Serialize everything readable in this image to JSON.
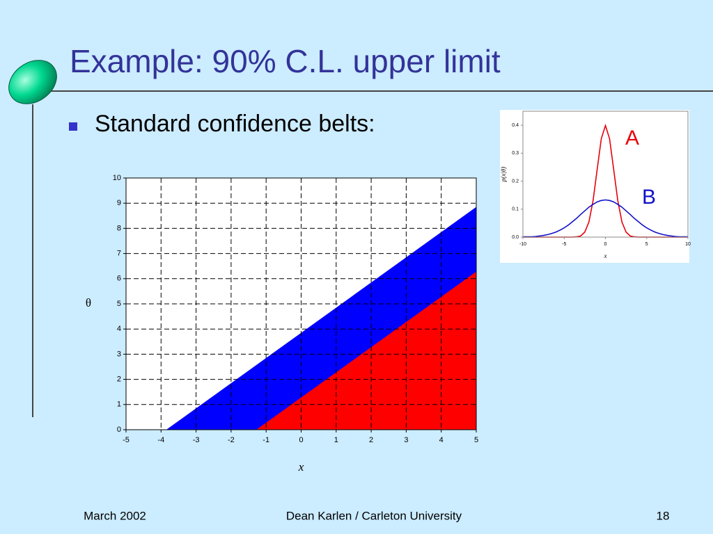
{
  "title": "Example: 90% C.L. upper limit",
  "bullet": "Standard confidence belts:",
  "footer": {
    "date": "March 2002",
    "author": "Dean Karlen / Carleton University",
    "page": "18"
  },
  "chart_data": [
    {
      "type": "area",
      "xlabel": "x",
      "ylabel": "θ",
      "x": [
        -3.85,
        -1.28,
        5
      ],
      "series": [
        {
          "color": "#0000ff",
          "values": [
            0,
            2.57,
            8.85
          ]
        },
        {
          "color": "#ff0000",
          "values": [
            null,
            0,
            6.28
          ]
        }
      ],
      "xlim": [
        -5,
        5
      ],
      "xticks": [
        -5,
        -4,
        -3,
        -2,
        -1,
        0,
        1,
        2,
        3,
        4,
        5
      ],
      "ylim": [
        0,
        10
      ],
      "yticks": [
        0,
        1,
        2,
        3,
        4,
        5,
        6,
        7,
        8,
        9,
        10
      ],
      "grid": true
    },
    {
      "type": "line",
      "xlabel": "x",
      "ylabel": "p(x|θ)",
      "x": [
        -10,
        -9.5,
        -9,
        -8.5,
        -8,
        -7.5,
        -7,
        -6.5,
        -6,
        -5.5,
        -5,
        -4.5,
        -4,
        -3.5,
        -3,
        -2.5,
        -2,
        -1.5,
        -1,
        -0.5,
        0,
        0.5,
        1,
        1.5,
        2,
        2.5,
        3,
        3.5,
        4,
        4.5,
        5,
        5.5,
        6,
        6.5,
        7,
        7.5,
        8,
        8.5,
        9,
        9.5,
        10
      ],
      "series": [
        {
          "name": "A",
          "color": "#e8000b",
          "values": [
            0,
            0,
            0,
            0,
            0,
            0,
            0,
            0,
            0,
            0,
            0,
            0,
            0,
            0.001,
            0.004,
            0.018,
            0.054,
            0.13,
            0.242,
            0.352,
            0.399,
            0.352,
            0.242,
            0.13,
            0.054,
            0.018,
            0.004,
            0.001,
            0,
            0,
            0,
            0,
            0,
            0,
            0,
            0,
            0,
            0,
            0,
            0,
            0
          ]
        },
        {
          "name": "B",
          "color": "#1010c8",
          "values": [
            0.001,
            0.001,
            0.001,
            0.002,
            0.004,
            0.006,
            0.009,
            0.013,
            0.018,
            0.025,
            0.033,
            0.043,
            0.055,
            0.067,
            0.081,
            0.094,
            0.107,
            0.117,
            0.126,
            0.131,
            0.133,
            0.131,
            0.126,
            0.117,
            0.107,
            0.094,
            0.081,
            0.067,
            0.055,
            0.043,
            0.033,
            0.025,
            0.018,
            0.013,
            0.009,
            0.006,
            0.004,
            0.002,
            0.001,
            0.001,
            0.001
          ]
        }
      ],
      "xlim": [
        -10,
        10
      ],
      "xticks": [
        -10,
        -5,
        0,
        5,
        10
      ],
      "ylim": [
        0,
        0.45
      ],
      "yticks": [
        {
          "value": 0,
          "label": "0.0"
        },
        0.1,
        0.2,
        0.3,
        0.4
      ],
      "grid": false
    }
  ]
}
